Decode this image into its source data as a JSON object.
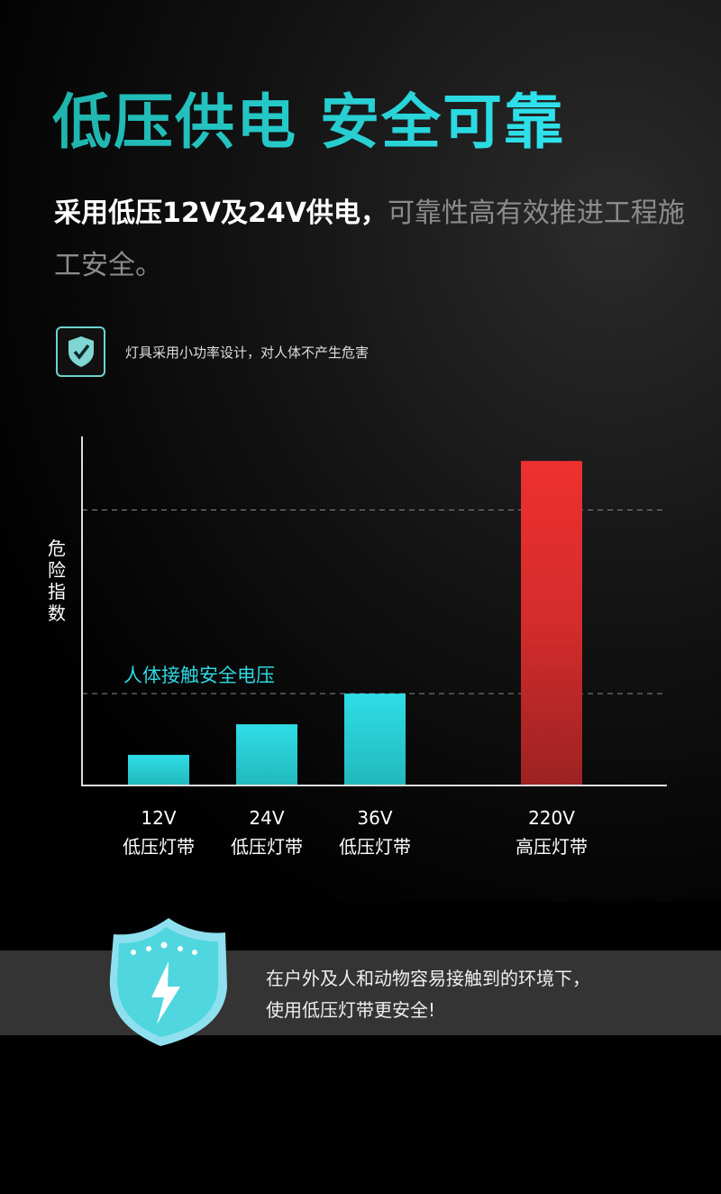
{
  "header": {
    "title": "低压供电 安全可靠",
    "subtitle_bold": "采用低压12V及24V供电，",
    "subtitle_rest": "可靠性高有效推进工程施工安全。"
  },
  "feature": {
    "icon": "shield-check-icon",
    "text": "灯具采用小功率设计，对人体不产生危害"
  },
  "chart_data": {
    "type": "bar",
    "ylabel": "危险指数",
    "categories": [
      "12V\n低压灯带",
      "24V\n低压灯带",
      "36V\n低压灯带",
      "220V\n高压灯带"
    ],
    "category_top": [
      "12V",
      "24V",
      "36V",
      "220V"
    ],
    "category_bottom": [
      "低压灯带",
      "低压灯带",
      "低压灯带",
      "高压灯带"
    ],
    "values": [
      1,
      2,
      3,
      10.6
    ],
    "ylim": [
      0,
      11.4
    ],
    "reference_lines": [
      {
        "value": 3,
        "label": "人体接触安全电压"
      },
      {
        "value": 9
      }
    ],
    "colors": {
      "low": "#2ed8e2",
      "high": "#e53030"
    }
  },
  "footer": {
    "icon": "shield-lightning-icon",
    "line1": "在户外及人和动物容易接触到的环境下，",
    "line2": "使用低压灯带更安全!"
  }
}
